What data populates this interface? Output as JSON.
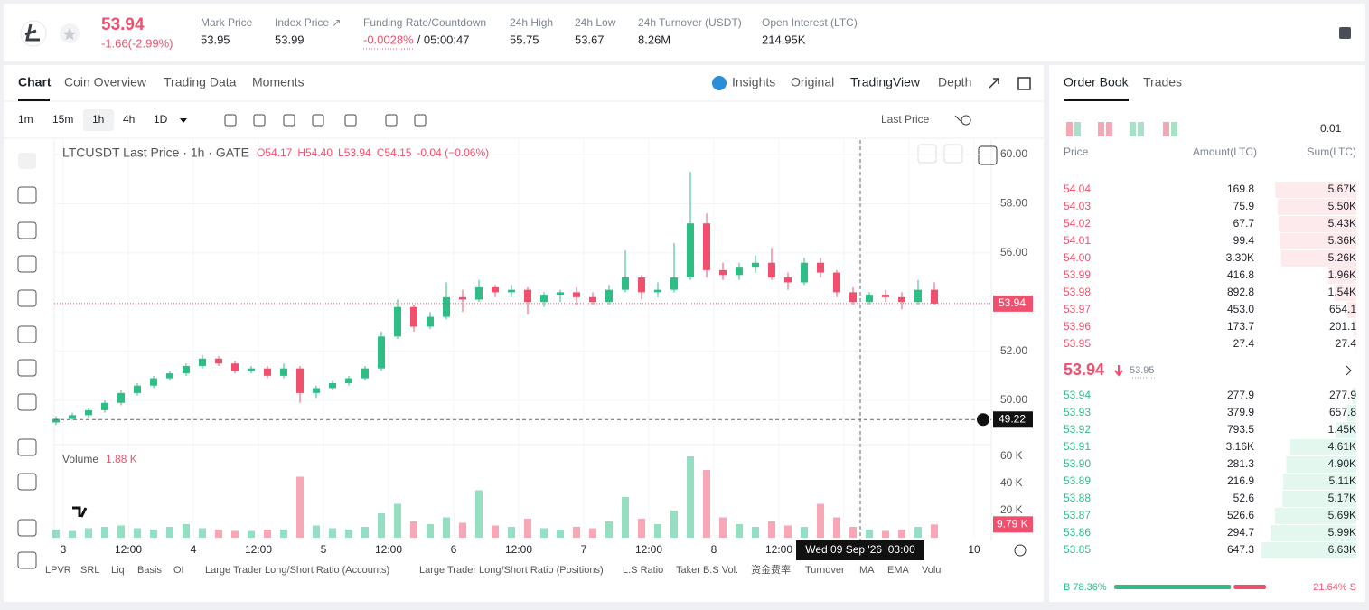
{
  "header": {
    "price": "53.94",
    "change": "-1.66(-2.99%)",
    "stats": [
      {
        "label": "Mark Price",
        "value": "53.95"
      },
      {
        "label": "Index Price ↗",
        "value": "53.99"
      },
      {
        "label": "Funding Rate/Countdown",
        "value": "-0.0028%",
        "extra": "/ 05:00:47"
      },
      {
        "label": "24h High",
        "value": "55.75"
      },
      {
        "label": "24h Low",
        "value": "53.67"
      },
      {
        "label": "24h Turnover (USDT)",
        "value": "8.26M"
      },
      {
        "label": "Open Interest (LTC)",
        "value": "214.95K"
      }
    ]
  },
  "tabs": [
    "Chart",
    "Coin Overview",
    "Trading Data",
    "Moments"
  ],
  "view_tabs": [
    "Insights",
    "Original",
    "TradingView",
    "Depth"
  ],
  "intervals": [
    "1m",
    "15m",
    "1h",
    "4h",
    "1D"
  ],
  "price_source": "Last Price",
  "chart_data": {
    "type": "candlestick",
    "title": "LTCUSDT Last Price · 1h · GATE",
    "legend_values": [
      "O54.17",
      "H54.40",
      "L53.94",
      "C54.15",
      "-0.04 (−0.06%)"
    ],
    "candles": [
      [
        49.1,
        49.35,
        49.0,
        49.25
      ],
      [
        49.25,
        49.5,
        49.2,
        49.4
      ],
      [
        49.4,
        49.7,
        49.3,
        49.6
      ],
      [
        49.6,
        50.0,
        49.5,
        49.9
      ],
      [
        49.9,
        50.4,
        49.8,
        50.3
      ],
      [
        50.3,
        50.7,
        50.2,
        50.6
      ],
      [
        50.6,
        51.0,
        50.5,
        50.9
      ],
      [
        50.9,
        51.2,
        50.8,
        51.1
      ],
      [
        51.1,
        51.5,
        51.0,
        51.4
      ],
      [
        51.4,
        51.85,
        51.3,
        51.7
      ],
      [
        51.7,
        51.8,
        51.4,
        51.5
      ],
      [
        51.5,
        51.6,
        51.1,
        51.2
      ],
      [
        51.2,
        51.4,
        51.1,
        51.3
      ],
      [
        51.3,
        51.4,
        50.9,
        51.0
      ],
      [
        51.0,
        51.5,
        50.9,
        51.3
      ],
      [
        51.3,
        51.4,
        49.9,
        50.3
      ],
      [
        50.3,
        50.6,
        50.1,
        50.5
      ],
      [
        50.5,
        50.8,
        50.4,
        50.7
      ],
      [
        50.7,
        51.0,
        50.6,
        50.9
      ],
      [
        50.9,
        51.4,
        50.8,
        51.3
      ],
      [
        51.3,
        52.8,
        51.2,
        52.6
      ],
      [
        52.6,
        54.1,
        52.5,
        53.8
      ],
      [
        53.8,
        53.9,
        52.8,
        53.0
      ],
      [
        53.0,
        53.6,
        52.9,
        53.4
      ],
      [
        53.4,
        54.8,
        53.3,
        54.2
      ],
      [
        54.2,
        54.5,
        53.6,
        54.1
      ],
      [
        54.1,
        54.9,
        54.0,
        54.6
      ],
      [
        54.6,
        54.7,
        54.2,
        54.4
      ],
      [
        54.4,
        54.7,
        54.2,
        54.5
      ],
      [
        54.5,
        54.6,
        53.5,
        54.0
      ],
      [
        54.0,
        54.4,
        53.8,
        54.3
      ],
      [
        54.3,
        54.5,
        54.0,
        54.4
      ],
      [
        54.4,
        54.6,
        53.9,
        54.2
      ],
      [
        54.2,
        54.4,
        53.9,
        54.0
      ],
      [
        54.0,
        54.7,
        53.9,
        54.5
      ],
      [
        54.5,
        56.1,
        54.4,
        55.0
      ],
      [
        55.0,
        55.1,
        54.1,
        54.4
      ],
      [
        54.4,
        54.8,
        54.2,
        54.5
      ],
      [
        54.5,
        56.4,
        54.4,
        55.0
      ],
      [
        55.0,
        59.3,
        54.9,
        57.2
      ],
      [
        57.2,
        57.6,
        55.0,
        55.3
      ],
      [
        55.3,
        55.6,
        54.9,
        55.1
      ],
      [
        55.1,
        55.6,
        54.9,
        55.4
      ],
      [
        55.4,
        55.9,
        55.2,
        55.6
      ],
      [
        55.6,
        56.2,
        54.9,
        55.0
      ],
      [
        55.0,
        55.2,
        54.5,
        54.8
      ],
      [
        54.8,
        55.8,
        54.7,
        55.6
      ],
      [
        55.6,
        55.8,
        55.0,
        55.2
      ],
      [
        55.2,
        55.3,
        54.2,
        54.4
      ],
      [
        54.4,
        54.6,
        53.9,
        54.0
      ],
      [
        54.0,
        54.4,
        53.9,
        54.3
      ],
      [
        54.3,
        54.5,
        54.0,
        54.2
      ],
      [
        54.2,
        54.4,
        53.7,
        54.0
      ],
      [
        54.0,
        54.9,
        53.9,
        54.5
      ],
      [
        54.5,
        54.8,
        53.9,
        53.94
      ]
    ],
    "volumes": [
      6,
      5,
      7,
      8,
      9,
      7,
      6,
      8,
      10,
      7,
      6,
      5,
      5,
      6,
      6,
      45,
      9,
      7,
      6,
      8,
      18,
      25,
      12,
      10,
      15,
      11,
      35,
      9,
      8,
      14,
      7,
      6,
      8,
      7,
      12,
      30,
      14,
      10,
      20,
      60,
      50,
      15,
      10,
      8,
      12,
      9,
      8,
      25,
      15,
      8,
      6,
      5,
      6,
      8,
      9.79
    ],
    "up_color": "#2ebd85",
    "down_color": "#f0506e",
    "ylim": [
      48.2,
      60.59
    ],
    "yticks": [
      {
        "value": 60,
        "label": "60.00"
      },
      {
        "value": 58,
        "label": "58.00"
      },
      {
        "value": 56,
        "label": "56.00"
      },
      {
        "value": 52,
        "label": "52.00"
      },
      {
        "value": 50,
        "label": "50.00"
      }
    ],
    "last_price": {
      "value": 53.94,
      "label": "53.94"
    },
    "crosshair_price": {
      "value": 49.22,
      "label": "49.22"
    },
    "crosshair_time": "Wed 09 Sep '26  03:00",
    "x_labels": [
      "3",
      "12:00",
      "4",
      "12:00",
      "5",
      "12:00",
      "6",
      "12:00",
      "7",
      "12:00",
      "8",
      "12:00",
      null,
      null,
      "10"
    ],
    "volume_title": "Volume",
    "volume_value": "1.88 K",
    "vlim": [
      0,
      68
    ],
    "vticks": [
      {
        "value": 60,
        "label": "60 K"
      },
      {
        "value": 40,
        "label": "40 K"
      },
      {
        "value": 20,
        "label": "20 K"
      }
    ],
    "last_volume": {
      "value": 9.79,
      "label": "9.79 K"
    }
  },
  "indicators": [
    "LPVR",
    "SRL",
    "Liq",
    "Basis",
    "OI",
    "Large Trader Long/Short Ratio (Accounts)",
    "Large Trader Long/Short Ratio (Positions)",
    "L.S Ratio",
    "Taker B.S Vol.",
    "资金费率",
    "Turnover",
    "MA",
    "EMA",
    "Volu"
  ],
  "order_book": {
    "tabs": [
      "Order Book",
      "Trades"
    ],
    "precision": "0.01",
    "headers": [
      "Price",
      "Amount(LTC)",
      "Sum(LTC)"
    ],
    "asks": [
      [
        "54.04",
        "169.8",
        "5.67K"
      ],
      [
        "54.03",
        "75.9",
        "5.50K"
      ],
      [
        "54.02",
        "67.7",
        "5.43K"
      ],
      [
        "54.01",
        "99.4",
        "5.36K"
      ],
      [
        "54.00",
        "3.30K",
        "5.26K"
      ],
      [
        "53.99",
        "416.8",
        "1.96K"
      ],
      [
        "53.98",
        "892.8",
        "1.54K"
      ],
      [
        "53.97",
        "453.0",
        "654.1"
      ],
      [
        "53.96",
        "173.7",
        "201.1"
      ],
      [
        "53.95",
        "27.4",
        "27.4"
      ]
    ],
    "mid_price": "53.94",
    "mark_price": "53.95",
    "bids": [
      [
        "53.94",
        "277.9",
        "277.9"
      ],
      [
        "53.93",
        "379.9",
        "657.8"
      ],
      [
        "53.92",
        "793.5",
        "1.45K"
      ],
      [
        "53.91",
        "3.16K",
        "4.61K"
      ],
      [
        "53.90",
        "281.3",
        "4.90K"
      ],
      [
        "53.89",
        "216.9",
        "5.11K"
      ],
      [
        "53.88",
        "52.6",
        "5.17K"
      ],
      [
        "53.87",
        "526.6",
        "5.69K"
      ],
      [
        "53.86",
        "294.7",
        "5.99K"
      ],
      [
        "53.85",
        "647.3",
        "6.63K"
      ]
    ],
    "buy_ratio": {
      "value": 78.36,
      "label": "B 78.36%"
    },
    "sell_ratio": {
      "value": 21.64,
      "label": "21.64% S"
    }
  }
}
